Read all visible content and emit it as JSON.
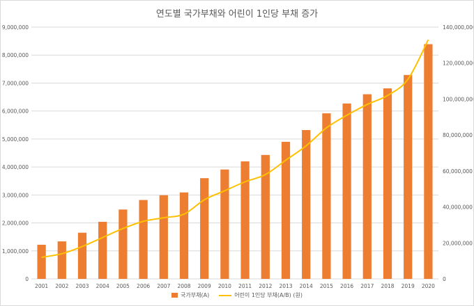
{
  "chart_data": {
    "type": "bar",
    "title": "연도별 국가부채와 어린이 1인당 부채 증가",
    "categories": [
      "2001",
      "2002",
      "2003",
      "2004",
      "2005",
      "2006",
      "2007",
      "2008",
      "2009",
      "2010",
      "2011",
      "2012",
      "2013",
      "2014",
      "2015",
      "2016",
      "2017",
      "2018",
      "2019",
      "2020"
    ],
    "series": [
      {
        "name": "국가부채(A)",
        "type": "bar",
        "axis": "left",
        "color": "#ed7d31",
        "values": [
          1220000,
          1340000,
          1650000,
          2040000,
          2480000,
          2820000,
          2990000,
          3090000,
          3600000,
          3910000,
          4200000,
          4430000,
          4900000,
          5320000,
          5920000,
          6270000,
          6600000,
          6810000,
          7290000,
          8390000
        ]
      },
      {
        "name": "어린이 1인당 부채(A/B) (원)",
        "type": "line",
        "axis": "right",
        "color": "#ffc000",
        "values": [
          12000000,
          14000000,
          18000000,
          23000000,
          28000000,
          32000000,
          34000000,
          36000000,
          44000000,
          49000000,
          54000000,
          58000000,
          66000000,
          74000000,
          84000000,
          91000000,
          97000000,
          102000000,
          111000000,
          133000000
        ]
      }
    ],
    "ylim": [
      0,
      9000000
    ],
    "y2lim": [
      0,
      140000000
    ],
    "yticks": [
      "0",
      "1,000,000",
      "2,000,000",
      "3,000,000",
      "4,000,000",
      "5,000,000",
      "6,000,000",
      "7,000,000",
      "8,000,000",
      "9,000,000"
    ],
    "y2ticks": [
      "0",
      "20,000,000",
      "40,000,000",
      "60,000,000",
      "80,000,000",
      "100,000,000",
      "120,000,000",
      "140,000,000"
    ],
    "grid": true,
    "legend_position": "bottom"
  }
}
